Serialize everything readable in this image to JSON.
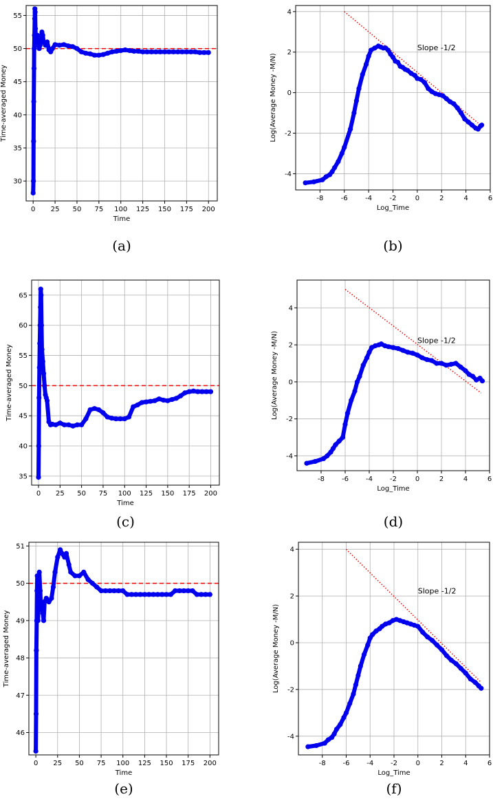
{
  "chart_data": [
    {
      "caption": "(a)",
      "type": "line",
      "xlabel": "Time",
      "ylabel": "Time-averaged Money",
      "xlim": [
        -8,
        210
      ],
      "ylim": [
        27,
        56.5
      ],
      "xticks": [
        0,
        25,
        50,
        75,
        100,
        125,
        150,
        175,
        200
      ],
      "yticks": [
        30,
        35,
        40,
        45,
        50,
        55
      ],
      "grid": true,
      "series": [
        {
          "style": "markers",
          "color": "#0000ee",
          "x": [
            0,
            0.3,
            0.5,
            0.7,
            1,
            1.2,
            1.5,
            1.8,
            2,
            2.3,
            2.6,
            3,
            3.5,
            4,
            5,
            6,
            7,
            8,
            9,
            10,
            11,
            12,
            14,
            16,
            18,
            20,
            22,
            25,
            30,
            35,
            40,
            45,
            50,
            55,
            60,
            65,
            70,
            75,
            80,
            85,
            90,
            95,
            100,
            105,
            110,
            115,
            120,
            125,
            130,
            135,
            140,
            145,
            150,
            155,
            160,
            165,
            170,
            175,
            180,
            185,
            190,
            195,
            200
          ],
          "y": [
            28.2,
            30,
            36,
            42,
            47,
            50,
            52,
            54.5,
            56,
            55.5,
            53,
            51.5,
            50.5,
            51.5,
            52,
            51,
            50,
            50.5,
            51.5,
            52.5,
            52,
            51,
            50.5,
            51,
            49.8,
            49.5,
            50,
            50.6,
            50.5,
            50.6,
            50.4,
            50.3,
            50,
            49.5,
            49.3,
            49.2,
            49.0,
            49.0,
            49.1,
            49.3,
            49.5,
            49.6,
            49.7,
            49.8,
            49.7,
            49.6,
            49.6,
            49.5,
            49.5,
            49.5,
            49.5,
            49.5,
            49.5,
            49.5,
            49.5,
            49.5,
            49.5,
            49.5,
            49.5,
            49.5,
            49.4,
            49.4,
            49.4
          ]
        }
      ],
      "reference_lines": [
        {
          "orientation": "horizontal",
          "y": 50,
          "color": "#ee0000",
          "style": "dashed"
        }
      ]
    },
    {
      "caption": "(b)",
      "type": "scatter",
      "xlabel": "Log_Time",
      "ylabel": "Log(Average Money -M/N)",
      "xlim": [
        -10,
        6
      ],
      "ylim": [
        -4.8,
        4.3
      ],
      "xticks": [
        -8,
        -6,
        -4,
        -2,
        0,
        2,
        4,
        6
      ],
      "yticks": [
        -4,
        -2,
        0,
        2,
        4
      ],
      "grid": true,
      "annotations": [
        "Slope -1/2"
      ],
      "series": [
        {
          "style": "markers",
          "color": "#0000ee",
          "x": [
            -9.2,
            -8.5,
            -7.8,
            -7.5,
            -7.2,
            -7.0,
            -6.8,
            -6.5,
            -6.2,
            -6.0,
            -5.5,
            -5.2,
            -5.0,
            -4.8,
            -4.5,
            -4.2,
            -4.0,
            -3.8,
            -3.5,
            -3.2,
            -3.0,
            -2.8,
            -2.6,
            -2.4,
            -2.2,
            -2.0,
            -1.8,
            -1.6,
            -1.4,
            -1.2,
            -1.0,
            -0.8,
            -0.5,
            -0.2,
            0,
            0.3,
            0.6,
            0.9,
            1.2,
            1.5,
            1.8,
            2.1,
            2.4,
            2.7,
            3.0,
            3.3,
            3.6,
            3.9,
            4.2,
            4.5,
            4.8,
            5.0,
            5.2,
            5.3
          ],
          "y": [
            -4.45,
            -4.4,
            -4.3,
            -4.15,
            -4.05,
            -3.9,
            -3.7,
            -3.4,
            -3.0,
            -2.7,
            -1.8,
            -1.0,
            -0.4,
            0.2,
            0.9,
            1.4,
            1.8,
            2.1,
            2.2,
            2.3,
            2.25,
            2.2,
            2.2,
            2.1,
            1.9,
            1.75,
            1.55,
            1.5,
            1.3,
            1.25,
            1.15,
            1.1,
            0.95,
            0.85,
            0.7,
            0.65,
            0.5,
            0.2,
            0.05,
            -0.05,
            -0.1,
            -0.15,
            -0.3,
            -0.45,
            -0.55,
            -0.75,
            -1.0,
            -1.3,
            -1.45,
            -1.6,
            -1.75,
            -1.8,
            -1.65,
            -1.6
          ]
        }
      ],
      "reference_lines": [
        {
          "orientation": "slope",
          "x": [
            -6,
            5
          ],
          "y": [
            4.0,
            -1.5
          ],
          "color": "#ee0000",
          "style": "dotted"
        }
      ]
    },
    {
      "caption": "(c)",
      "type": "line",
      "xlabel": "Time",
      "ylabel": "Time-averaged Money",
      "xlim": [
        -8,
        210
      ],
      "ylim": [
        33.5,
        67.5
      ],
      "xticks": [
        0,
        25,
        50,
        75,
        100,
        125,
        150,
        175,
        200
      ],
      "yticks": [
        35,
        40,
        45,
        50,
        55,
        60,
        65
      ],
      "grid": true,
      "series": [
        {
          "style": "markers",
          "color": "#0000ee",
          "x": [
            0,
            0.3,
            0.6,
            1,
            1.4,
            1.8,
            2.2,
            2.6,
            3,
            3.5,
            4,
            5,
            6,
            7,
            8,
            9,
            10,
            12,
            14,
            16,
            20,
            25,
            30,
            35,
            40,
            45,
            50,
            55,
            60,
            65,
            70,
            75,
            80,
            85,
            90,
            95,
            100,
            105,
            110,
            115,
            120,
            125,
            130,
            135,
            140,
            145,
            150,
            155,
            160,
            165,
            170,
            175,
            180,
            185,
            190,
            195,
            200
          ],
          "y": [
            34.8,
            40,
            48,
            53,
            57,
            60,
            63,
            66,
            65,
            60,
            56,
            54,
            52,
            50,
            48.5,
            48,
            47.5,
            44,
            43.5,
            43.6,
            43.5,
            43.8,
            43.5,
            43.5,
            43.3,
            43.5,
            43.5,
            44.5,
            46,
            46.2,
            46,
            45.5,
            44.8,
            44.6,
            44.5,
            44.5,
            44.5,
            44.8,
            46.5,
            46.8,
            47.2,
            47.3,
            47.4,
            47.5,
            47.8,
            47.6,
            47.5,
            47.7,
            47.9,
            48.3,
            48.8,
            49.0,
            49.1,
            49.0,
            49.0,
            49.0,
            49.0
          ]
        }
      ],
      "reference_lines": [
        {
          "orientation": "horizontal",
          "y": 50,
          "color": "#ee0000",
          "style": "dashed"
        }
      ]
    },
    {
      "caption": "(d)",
      "type": "scatter",
      "xlabel": "Log_Time",
      "ylabel": "Log(Average Money -M/N)",
      "xlim": [
        -10,
        6
      ],
      "ylim": [
        -4.8,
        5.5
      ],
      "xticks": [
        -8,
        -6,
        -4,
        -2,
        0,
        2,
        4,
        6
      ],
      "yticks": [
        -4,
        -2,
        0,
        2,
        4
      ],
      "grid": true,
      "annotations": [
        "Slope -1/2"
      ],
      "series": [
        {
          "style": "markers",
          "color": "#0000ee",
          "x": [
            -9.2,
            -8.5,
            -7.8,
            -7.5,
            -7.2,
            -7.0,
            -6.8,
            -6.5,
            -6.2,
            -6.0,
            -5.8,
            -5.5,
            -5.2,
            -5.0,
            -4.8,
            -4.5,
            -4.2,
            -4.0,
            -3.8,
            -3.5,
            -3.2,
            -3.0,
            -2.7,
            -2.4,
            -2.0,
            -1.6,
            -1.2,
            -0.8,
            -0.4,
            0,
            0.4,
            0.8,
            1.2,
            1.6,
            2.0,
            2.4,
            2.8,
            3.2,
            3.6,
            4.0,
            4.3,
            4.6,
            4.9,
            5.2,
            5.4
          ],
          "y": [
            -4.4,
            -4.3,
            -4.15,
            -4.0,
            -3.8,
            -3.6,
            -3.4,
            -3.2,
            -3.0,
            -2.3,
            -1.7,
            -1.0,
            -0.5,
            0.0,
            0.3,
            0.9,
            1.3,
            1.6,
            1.85,
            1.95,
            2.0,
            2.05,
            1.95,
            1.9,
            1.85,
            1.8,
            1.7,
            1.6,
            1.55,
            1.45,
            1.3,
            1.2,
            1.15,
            1.0,
            1.0,
            0.9,
            0.95,
            1.0,
            0.8,
            0.6,
            0.4,
            0.3,
            0.1,
            0.2,
            0.05
          ]
        }
      ],
      "reference_lines": [
        {
          "orientation": "slope",
          "x": [
            -6,
            5.3
          ],
          "y": [
            5.0,
            -0.6
          ],
          "color": "#ee0000",
          "style": "dotted"
        }
      ]
    },
    {
      "caption": "(e)",
      "type": "line",
      "xlabel": "Time",
      "ylabel": "Time-averaged Money",
      "xlim": [
        -8,
        210
      ],
      "ylim": [
        45.4,
        51.1
      ],
      "xticks": [
        0,
        25,
        50,
        75,
        100,
        125,
        150,
        175,
        200
      ],
      "yticks": [
        46,
        47,
        48,
        49,
        50,
        51
      ],
      "grid": true,
      "series": [
        {
          "style": "markers",
          "color": "#0000ee",
          "x": [
            0,
            0.3,
            0.6,
            1,
            1.3,
            1.6,
            2,
            2.5,
            3,
            3.5,
            4,
            5,
            6,
            7,
            8,
            9,
            10,
            12,
            15,
            18,
            20,
            22,
            25,
            28,
            30,
            33,
            35,
            38,
            40,
            45,
            50,
            55,
            60,
            65,
            70,
            75,
            80,
            85,
            90,
            95,
            100,
            105,
            110,
            115,
            120,
            125,
            130,
            135,
            140,
            145,
            150,
            155,
            160,
            165,
            170,
            175,
            180,
            185,
            190,
            195,
            200
          ],
          "y": [
            45.5,
            46.5,
            48.2,
            49.0,
            49.8,
            50.2,
            49.5,
            49.0,
            49.3,
            50.0,
            50.3,
            49.8,
            49.3,
            49.5,
            49.2,
            49.0,
            49.5,
            49.6,
            49.5,
            49.6,
            49.9,
            50.3,
            50.7,
            50.9,
            50.8,
            50.7,
            50.8,
            50.5,
            50.3,
            50.2,
            50.2,
            50.3,
            50.1,
            50.0,
            49.9,
            49.8,
            49.8,
            49.8,
            49.8,
            49.8,
            49.8,
            49.7,
            49.7,
            49.7,
            49.7,
            49.7,
            49.7,
            49.7,
            49.7,
            49.7,
            49.7,
            49.7,
            49.8,
            49.8,
            49.8,
            49.8,
            49.8,
            49.7,
            49.7,
            49.7,
            49.7
          ]
        }
      ],
      "reference_lines": [
        {
          "orientation": "horizontal",
          "y": 50,
          "color": "#ee0000",
          "style": "dashed"
        }
      ]
    },
    {
      "caption": "(f)",
      "type": "scatter",
      "xlabel": "Log_Time",
      "ylabel": "Log(Average Money -M/N)",
      "xlim": [
        -10,
        6
      ],
      "ylim": [
        -4.8,
        4.3
      ],
      "xticks": [
        -8,
        -6,
        -4,
        -2,
        0,
        2,
        4,
        6
      ],
      "yticks": [
        -4,
        -2,
        0,
        2,
        4
      ],
      "grid": true,
      "annotations": [
        "Slope -1/2"
      ],
      "series": [
        {
          "style": "markers",
          "color": "#0000ee",
          "x": [
            -9.2,
            -8.5,
            -7.8,
            -7.5,
            -7.2,
            -7.0,
            -6.8,
            -6.5,
            -6.2,
            -6.0,
            -5.7,
            -5.4,
            -5.2,
            -5.0,
            -4.8,
            -4.5,
            -4.2,
            -4.0,
            -3.8,
            -3.5,
            -3.2,
            -3.0,
            -2.7,
            -2.4,
            -2.1,
            -1.8,
            -1.5,
            -1.2,
            -0.9,
            -0.6,
            -0.3,
            0,
            0.4,
            0.8,
            1.2,
            1.6,
            2.0,
            2.4,
            2.8,
            3.2,
            3.6,
            4.0,
            4.4,
            4.8,
            5.1,
            5.3
          ],
          "y": [
            -4.45,
            -4.4,
            -4.3,
            -4.15,
            -4.05,
            -3.9,
            -3.7,
            -3.5,
            -3.2,
            -3.0,
            -2.6,
            -2.2,
            -1.8,
            -1.4,
            -1.0,
            -0.5,
            -0.1,
            0.2,
            0.35,
            0.5,
            0.6,
            0.7,
            0.8,
            0.85,
            0.95,
            1.0,
            0.95,
            0.9,
            0.85,
            0.8,
            0.75,
            0.7,
            0.45,
            0.25,
            0.1,
            -0.1,
            -0.3,
            -0.55,
            -0.75,
            -0.9,
            -1.1,
            -1.3,
            -1.55,
            -1.7,
            -1.85,
            -1.95
          ]
        }
      ],
      "reference_lines": [
        {
          "orientation": "slope",
          "x": [
            -6,
            5.3
          ],
          "y": [
            4.0,
            -1.7
          ],
          "color": "#ee0000",
          "style": "dotted"
        }
      ]
    }
  ]
}
